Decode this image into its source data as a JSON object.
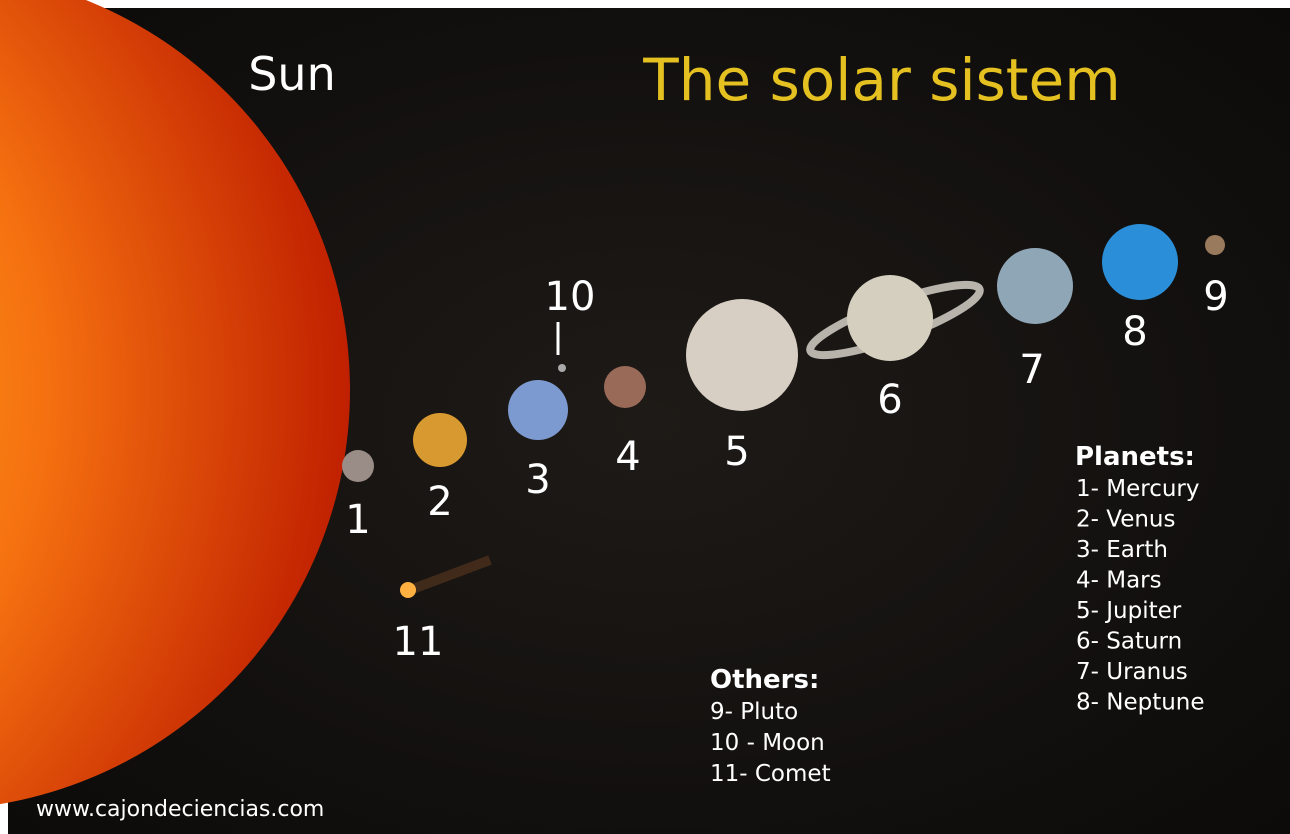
{
  "title": "The solar sistem",
  "sun_label": "Sun",
  "bodies": [
    {
      "label": "1"
    },
    {
      "label": "2"
    },
    {
      "label": "3"
    },
    {
      "label": "4"
    },
    {
      "label": "5"
    },
    {
      "label": "6"
    },
    {
      "label": "7"
    },
    {
      "label": "8"
    },
    {
      "label": "9"
    },
    {
      "label": "10"
    },
    {
      "label": "11"
    }
  ],
  "planets": {
    "heading": "Planets:",
    "items": [
      "1- Mercury",
      "2- Venus",
      "3- Earth",
      "4- Mars",
      "5- Jupiter",
      "6- Saturn",
      "7- Uranus",
      "8- Neptune"
    ]
  },
  "others": {
    "heading": "Others:",
    "items": [
      "9- Pluto",
      "10 - Moon",
      "11- Comet"
    ]
  },
  "footer": "www.cajondeciencias.com"
}
